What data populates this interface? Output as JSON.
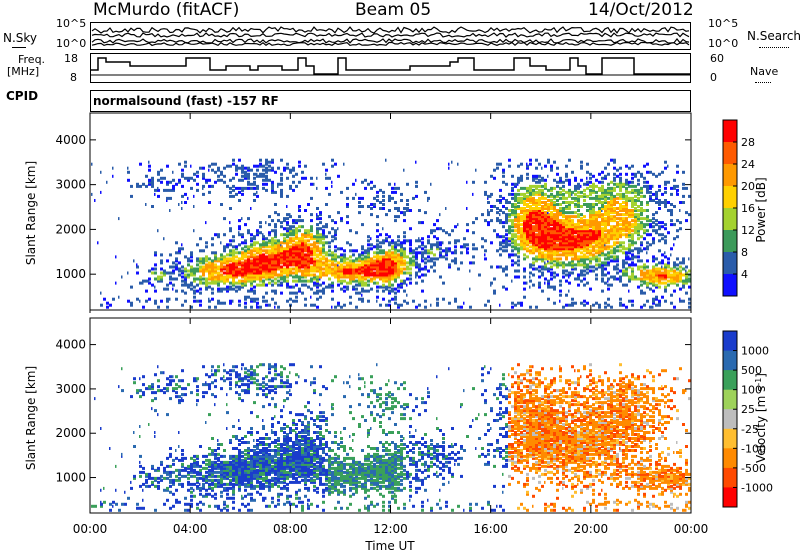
{
  "header": {
    "station": "McMurdo (fitACF)",
    "beam": "Beam 05",
    "date": "14/Oct/2012"
  },
  "top_panels": {
    "nsky_label": "N.Sky",
    "nsearch_label": "N.Search",
    "noise_ticks_left": [
      "10^5",
      "10^0"
    ],
    "noise_ticks_right": [
      "10^5",
      "10^0"
    ],
    "freq_label": "Freq.",
    "freq_unit": "[MHz]",
    "freq_ticks": [
      "18",
      "8"
    ],
    "nave_label": "Nave",
    "nave_ticks": [
      "60",
      "0"
    ],
    "cpid_label": "CPID",
    "cpid_text": "normalsound (fast) -157 RF"
  },
  "chart_data": [
    {
      "type": "heatmap",
      "parameter": "power",
      "ylabel": "Slant Range [km]",
      "ylim": [
        200,
        4600
      ],
      "yticks": [
        "1000",
        "2000",
        "3000",
        "4000"
      ],
      "xlim_hours": [
        0,
        24
      ],
      "colorbar_label": "Power [dB]",
      "colorbar_ticks": [
        "28",
        "24",
        "20",
        "16",
        "12",
        "8",
        "4"
      ],
      "colorbar_colors": [
        "#ff0000",
        "#ff5a00",
        "#ff9900",
        "#ffd000",
        "#a4d22f",
        "#3c9a5a",
        "#2a5caa",
        "#1010ff"
      ]
    },
    {
      "type": "heatmap",
      "parameter": "velocity",
      "ylabel": "Slant Range [km]",
      "ylim": [
        200,
        4600
      ],
      "yticks": [
        "1000",
        "2000",
        "3000",
        "4000"
      ],
      "xlabel": "Time UT",
      "xticks": [
        "00:00",
        "04:00",
        "08:00",
        "12:00",
        "16:00",
        "20:00",
        "00:00"
      ],
      "xlim_hours": [
        0,
        24
      ],
      "colorbar_label": "Velocity [m s",
      "colorbar_label_sup": "-1",
      "colorbar_label_end": "]",
      "colorbar_ticks": [
        "1000",
        "500",
        "100",
        "25",
        "-25",
        "-100",
        "-500",
        "-1000"
      ],
      "colorbar_colors": [
        "#1a3ccc",
        "#2a6ab0",
        "#3aa05a",
        "#9ed25a",
        "#bdbdbd",
        "#ffbe30",
        "#ff8a00",
        "#ff4a00",
        "#ff0000"
      ]
    }
  ]
}
